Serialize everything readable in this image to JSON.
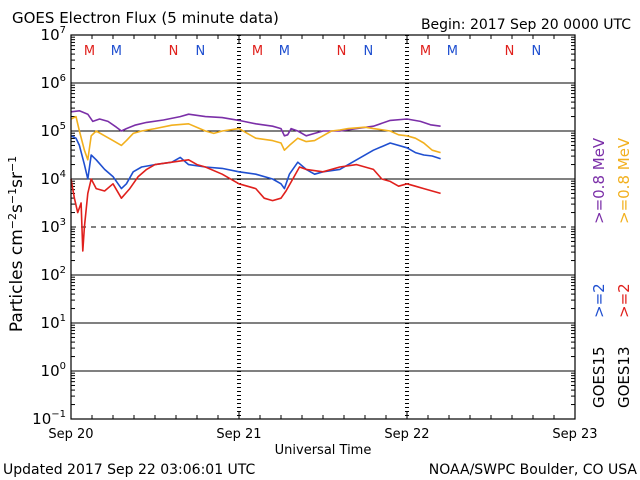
{
  "chart_data": {
    "type": "line",
    "title": "GOES Electron Flux (5 minute data)",
    "begin_label": "Begin: 2017 Sep 20 0000 UTC",
    "xlabel": "Universal Time",
    "ylabel": {
      "base": "Particles cm",
      "exp1": "−2",
      "mid1": "s",
      "exp2": "−1",
      "mid2": "sr",
      "exp3": "−1"
    },
    "x_unit": "days since 2017 Sep 20 0000 UTC",
    "xlim": [
      0,
      3
    ],
    "x_ticks": [
      {
        "value": 0,
        "label": "Sep 20"
      },
      {
        "value": 1,
        "label": "Sep 21"
      },
      {
        "value": 2,
        "label": "Sep 22"
      },
      {
        "value": 3,
        "label": "Sep 23"
      }
    ],
    "y_scale": "log",
    "ylim_exponent": [
      -1,
      7
    ],
    "y_ticks": [
      {
        "exp": 7,
        "label_base": "10",
        "label_exp": "7"
      },
      {
        "exp": 6,
        "label_base": "10",
        "label_exp": "6"
      },
      {
        "exp": 5,
        "label_base": "10",
        "label_exp": "5"
      },
      {
        "exp": 4,
        "label_base": "10",
        "label_exp": "4"
      },
      {
        "exp": 3,
        "label_base": "10",
        "label_exp": "3"
      },
      {
        "exp": 2,
        "label_base": "10",
        "label_exp": "2"
      },
      {
        "exp": 1,
        "label_base": "10",
        "label_exp": "1"
      },
      {
        "exp": 0,
        "label_base": "10",
        "label_exp": "0"
      },
      {
        "exp": -1,
        "label_base": "10",
        "label_exp": "−1"
      }
    ],
    "threshold_exponent": 3,
    "mn_markers": [
      {
        "day": 0.11,
        "letter": "M",
        "color": "#e0201c"
      },
      {
        "day": 0.27,
        "letter": "M",
        "color": "#1f4fd0"
      },
      {
        "day": 0.61,
        "letter": "N",
        "color": "#e0201c"
      },
      {
        "day": 0.77,
        "letter": "N",
        "color": "#1f4fd0"
      },
      {
        "day": 1.11,
        "letter": "M",
        "color": "#e0201c"
      },
      {
        "day": 1.27,
        "letter": "M",
        "color": "#1f4fd0"
      },
      {
        "day": 1.61,
        "letter": "N",
        "color": "#e0201c"
      },
      {
        "day": 1.77,
        "letter": "N",
        "color": "#1f4fd0"
      },
      {
        "day": 2.11,
        "letter": "M",
        "color": "#e0201c"
      },
      {
        "day": 2.27,
        "letter": "M",
        "color": "#1f4fd0"
      },
      {
        "day": 2.61,
        "letter": "N",
        "color": "#e0201c"
      },
      {
        "day": 2.77,
        "letter": "N",
        "color": "#1f4fd0"
      }
    ],
    "series": [
      {
        "name": "GOES13 >=0.8 MeV",
        "color": "#7b2fa8",
        "points": [
          [
            0,
            5.4
          ],
          [
            0.05,
            5.42
          ],
          [
            0.1,
            5.35
          ],
          [
            0.13,
            5.2
          ],
          [
            0.17,
            5.25
          ],
          [
            0.22,
            5.2
          ],
          [
            0.27,
            5.08
          ],
          [
            0.3,
            5.0
          ],
          [
            0.33,
            5.05
          ],
          [
            0.38,
            5.12
          ],
          [
            0.45,
            5.18
          ],
          [
            0.55,
            5.23
          ],
          [
            0.65,
            5.3
          ],
          [
            0.7,
            5.35
          ],
          [
            0.8,
            5.3
          ],
          [
            0.9,
            5.28
          ],
          [
            1.0,
            5.22
          ],
          [
            1.1,
            5.15
          ],
          [
            1.2,
            5.1
          ],
          [
            1.25,
            5.05
          ],
          [
            1.27,
            4.9
          ],
          [
            1.29,
            4.92
          ],
          [
            1.31,
            5.05
          ],
          [
            1.35,
            5.0
          ],
          [
            1.4,
            4.9
          ],
          [
            1.45,
            4.95
          ],
          [
            1.5,
            5.0
          ],
          [
            1.6,
            5.0
          ],
          [
            1.7,
            5.05
          ],
          [
            1.8,
            5.1
          ],
          [
            1.9,
            5.22
          ],
          [
            2.0,
            5.25
          ],
          [
            2.08,
            5.2
          ],
          [
            2.14,
            5.13
          ],
          [
            2.2,
            5.1
          ]
        ]
      },
      {
        "name": "GOES15 >=0.8 MeV",
        "color": "#f2b01e",
        "points": [
          [
            0,
            5.25
          ],
          [
            0.03,
            5.3
          ],
          [
            0.05,
            5.0
          ],
          [
            0.08,
            4.6
          ],
          [
            0.1,
            4.4
          ],
          [
            0.12,
            4.9
          ],
          [
            0.15,
            5.0
          ],
          [
            0.2,
            4.9
          ],
          [
            0.25,
            4.8
          ],
          [
            0.3,
            4.7
          ],
          [
            0.33,
            4.8
          ],
          [
            0.37,
            4.95
          ],
          [
            0.42,
            5.0
          ],
          [
            0.5,
            5.05
          ],
          [
            0.6,
            5.12
          ],
          [
            0.7,
            5.15
          ],
          [
            0.8,
            5.0
          ],
          [
            0.85,
            4.95
          ],
          [
            0.9,
            5.0
          ],
          [
            1.0,
            5.05
          ],
          [
            1.05,
            4.95
          ],
          [
            1.1,
            4.85
          ],
          [
            1.2,
            4.8
          ],
          [
            1.25,
            4.75
          ],
          [
            1.27,
            4.6
          ],
          [
            1.3,
            4.7
          ],
          [
            1.35,
            4.85
          ],
          [
            1.4,
            4.78
          ],
          [
            1.45,
            4.8
          ],
          [
            1.5,
            4.9
          ],
          [
            1.55,
            5.0
          ],
          [
            1.6,
            5.02
          ],
          [
            1.65,
            5.05
          ],
          [
            1.75,
            5.08
          ],
          [
            1.8,
            5.05
          ],
          [
            1.9,
            5.0
          ],
          [
            1.95,
            4.92
          ],
          [
            2.0,
            4.9
          ],
          [
            2.05,
            4.85
          ],
          [
            2.1,
            4.75
          ],
          [
            2.15,
            4.6
          ],
          [
            2.2,
            4.55
          ]
        ]
      },
      {
        "name": "GOES15 >=2 MeV",
        "color": "#1f4fd0",
        "points": [
          [
            0,
            4.9
          ],
          [
            0.03,
            4.85
          ],
          [
            0.05,
            4.7
          ],
          [
            0.08,
            4.3
          ],
          [
            0.1,
            4.0
          ],
          [
            0.12,
            4.5
          ],
          [
            0.15,
            4.4
          ],
          [
            0.2,
            4.2
          ],
          [
            0.25,
            4.05
          ],
          [
            0.3,
            3.8
          ],
          [
            0.33,
            3.9
          ],
          [
            0.37,
            4.15
          ],
          [
            0.42,
            4.25
          ],
          [
            0.5,
            4.3
          ],
          [
            0.6,
            4.35
          ],
          [
            0.65,
            4.45
          ],
          [
            0.7,
            4.3
          ],
          [
            0.8,
            4.25
          ],
          [
            0.9,
            4.22
          ],
          [
            1.0,
            4.15
          ],
          [
            1.1,
            4.1
          ],
          [
            1.2,
            4.0
          ],
          [
            1.25,
            3.9
          ],
          [
            1.27,
            3.8
          ],
          [
            1.3,
            4.1
          ],
          [
            1.35,
            4.35
          ],
          [
            1.4,
            4.2
          ],
          [
            1.45,
            4.1
          ],
          [
            1.5,
            4.15
          ],
          [
            1.6,
            4.2
          ],
          [
            1.7,
            4.4
          ],
          [
            1.8,
            4.6
          ],
          [
            1.9,
            4.75
          ],
          [
            2.0,
            4.65
          ],
          [
            2.05,
            4.55
          ],
          [
            2.1,
            4.5
          ],
          [
            2.15,
            4.48
          ],
          [
            2.2,
            4.42
          ]
        ]
      },
      {
        "name": "GOES13 >=2 MeV",
        "color": "#e0201c",
        "points": [
          [
            0,
            4.0
          ],
          [
            0.02,
            3.6
          ],
          [
            0.04,
            3.3
          ],
          [
            0.06,
            3.5
          ],
          [
            0.07,
            2.5
          ],
          [
            0.08,
            3.0
          ],
          [
            0.1,
            3.7
          ],
          [
            0.12,
            4.0
          ],
          [
            0.15,
            3.8
          ],
          [
            0.2,
            3.75
          ],
          [
            0.25,
            3.9
          ],
          [
            0.3,
            3.6
          ],
          [
            0.35,
            3.8
          ],
          [
            0.4,
            4.05
          ],
          [
            0.45,
            4.2
          ],
          [
            0.5,
            4.3
          ],
          [
            0.6,
            4.35
          ],
          [
            0.7,
            4.4
          ],
          [
            0.75,
            4.3
          ],
          [
            0.8,
            4.25
          ],
          [
            0.9,
            4.1
          ],
          [
            1.0,
            3.9
          ],
          [
            1.1,
            3.8
          ],
          [
            1.15,
            3.6
          ],
          [
            1.2,
            3.55
          ],
          [
            1.25,
            3.6
          ],
          [
            1.28,
            3.75
          ],
          [
            1.32,
            4.0
          ],
          [
            1.36,
            4.25
          ],
          [
            1.4,
            4.2
          ],
          [
            1.5,
            4.15
          ],
          [
            1.6,
            4.25
          ],
          [
            1.7,
            4.3
          ],
          [
            1.8,
            4.2
          ],
          [
            1.85,
            4.0
          ],
          [
            1.9,
            3.95
          ],
          [
            1.95,
            3.85
          ],
          [
            2.0,
            3.9
          ],
          [
            2.05,
            3.85
          ],
          [
            2.1,
            3.8
          ],
          [
            2.15,
            3.75
          ],
          [
            2.2,
            3.7
          ]
        ]
      }
    ],
    "legend": {
      "purple_label": ">=0.8 MeV",
      "purple_color": "#7b2fa8",
      "yellow_label": ">=0.8 MeV",
      "yellow_color": "#f2b01e",
      "blue_label": ">=2",
      "blue_color": "#1f4fd0",
      "red_label": ">=2",
      "red_color": "#e0201c",
      "goes15_label": "GOES15",
      "goes13_label": "GOES13"
    }
  },
  "footer": {
    "updated": "Updated 2017 Sep 22 03:06:01 UTC",
    "source": "NOAA/SWPC Boulder, CO USA"
  }
}
